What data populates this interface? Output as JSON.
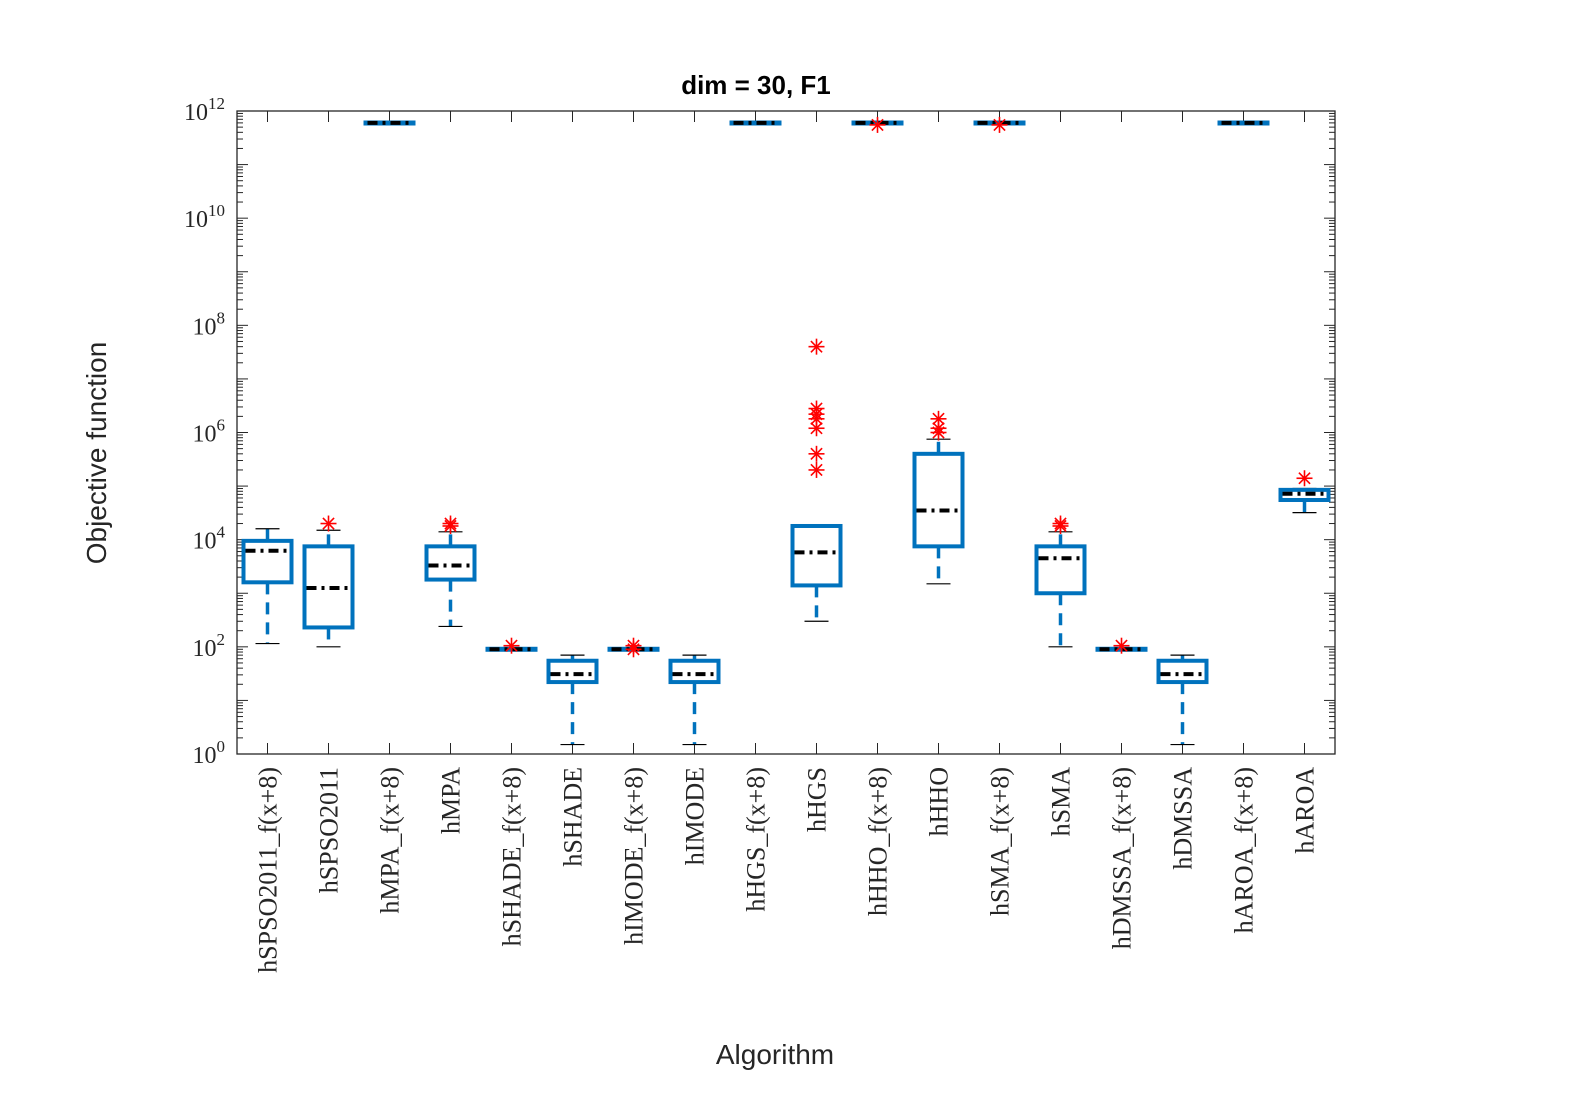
{
  "chart_data": {
    "type": "boxplot",
    "title": "dim = 30,  F1",
    "xlabel": "Algorithm",
    "ylabel": "Objective function",
    "yscale": "log",
    "ylim": [
      1,
      1000000000000.0
    ],
    "yticks": [
      {
        "base": "10",
        "exp": "0",
        "value": 1
      },
      {
        "base": "10",
        "exp": "2",
        "value": 100
      },
      {
        "base": "10",
        "exp": "4",
        "value": 10000
      },
      {
        "base": "10",
        "exp": "6",
        "value": 1000000
      },
      {
        "base": "10",
        "exp": "8",
        "value": 100000000
      },
      {
        "base": "10",
        "exp": "10",
        "value": 10000000000
      },
      {
        "base": "10",
        "exp": "12",
        "value": 1000000000000
      }
    ],
    "colors": {
      "box": "#0072BD",
      "median": "#000000",
      "outlier": "#FF0000",
      "axis": "#262626"
    },
    "categories": [
      "hSPSO2011_f(x+8)",
      "hSPSO2011",
      "hMPA_f(x+8)",
      "hMPA",
      "hSHADE_f(x+8)",
      "hSHADE",
      "hIMODE_f(x+8)",
      "hIMODE",
      "hHGS_f(x+8)",
      "hHGS",
      "hHHO_f(x+8)",
      "hHHO",
      "hSMA_f(x+8)",
      "hSMA",
      "hDMSSA_f(x+8)",
      "hDMSSA",
      "hAROA_f(x+8)",
      "hAROA"
    ],
    "boxes": [
      {
        "min": 115,
        "q1": 1600,
        "median": 6200,
        "q3": 9500,
        "max": 16000,
        "outliers": []
      },
      {
        "min": 100,
        "q1": 230,
        "median": 1250,
        "q3": 7500,
        "max": 15000,
        "outliers": [
          20000
        ]
      },
      {
        "min": 600000000000.0,
        "q1": 600000000000.0,
        "median": 600000000000.0,
        "q3": 610000000000.0,
        "max": 610000000000.0,
        "outliers": []
      },
      {
        "min": 240,
        "q1": 1800,
        "median": 3300,
        "q3": 7500,
        "max": 14000,
        "outliers": [
          18000,
          20000
        ]
      },
      {
        "min": 90,
        "q1": 90,
        "median": 90,
        "q3": 92,
        "max": 92,
        "outliers": [
          105
        ]
      },
      {
        "min": 1.5,
        "q1": 22,
        "median": 31,
        "q3": 55,
        "max": 70,
        "outliers": []
      },
      {
        "min": 90,
        "q1": 90,
        "median": 90,
        "q3": 92,
        "max": 92,
        "outliers": [
          90,
          105
        ]
      },
      {
        "min": 1.5,
        "q1": 22,
        "median": 31,
        "q3": 55,
        "max": 70,
        "outliers": []
      },
      {
        "min": 600000000000.0,
        "q1": 600000000000.0,
        "median": 600000000000.0,
        "q3": 610000000000.0,
        "max": 610000000000.0,
        "outliers": []
      },
      {
        "min": 300,
        "q1": 1400,
        "median": 5800,
        "q3": 18000,
        "max": 18000,
        "outliers": [
          200000,
          400000,
          1200000,
          1800000,
          2200000,
          2800000,
          40000000
        ]
      },
      {
        "min": 600000000000.0,
        "q1": 600000000000.0,
        "median": 600000000000.0,
        "q3": 610000000000.0,
        "max": 610000000000.0,
        "outliers": [
          550000000000.0
        ]
      },
      {
        "min": 1500,
        "q1": 7500,
        "median": 35000,
        "q3": 400000,
        "max": 750000,
        "outliers": [
          1000000,
          1200000,
          1800000
        ]
      },
      {
        "min": 600000000000.0,
        "q1": 600000000000.0,
        "median": 600000000000.0,
        "q3": 610000000000.0,
        "max": 610000000000.0,
        "outliers": [
          550000000000.0
        ]
      },
      {
        "min": 100,
        "q1": 1000,
        "median": 4500,
        "q3": 7500,
        "max": 14000,
        "outliers": [
          18000,
          20000
        ]
      },
      {
        "min": 90,
        "q1": 90,
        "median": 90,
        "q3": 92,
        "max": 92,
        "outliers": [
          105
        ]
      },
      {
        "min": 1.5,
        "q1": 22,
        "median": 31,
        "q3": 55,
        "max": 70,
        "outliers": []
      },
      {
        "min": 600000000000.0,
        "q1": 600000000000.0,
        "median": 600000000000.0,
        "q3": 610000000000.0,
        "max": 610000000000.0,
        "outliers": []
      },
      {
        "min": 32000,
        "q1": 55000,
        "median": 72000,
        "q3": 85000,
        "max": 90000,
        "outliers": [
          140000
        ]
      }
    ]
  }
}
